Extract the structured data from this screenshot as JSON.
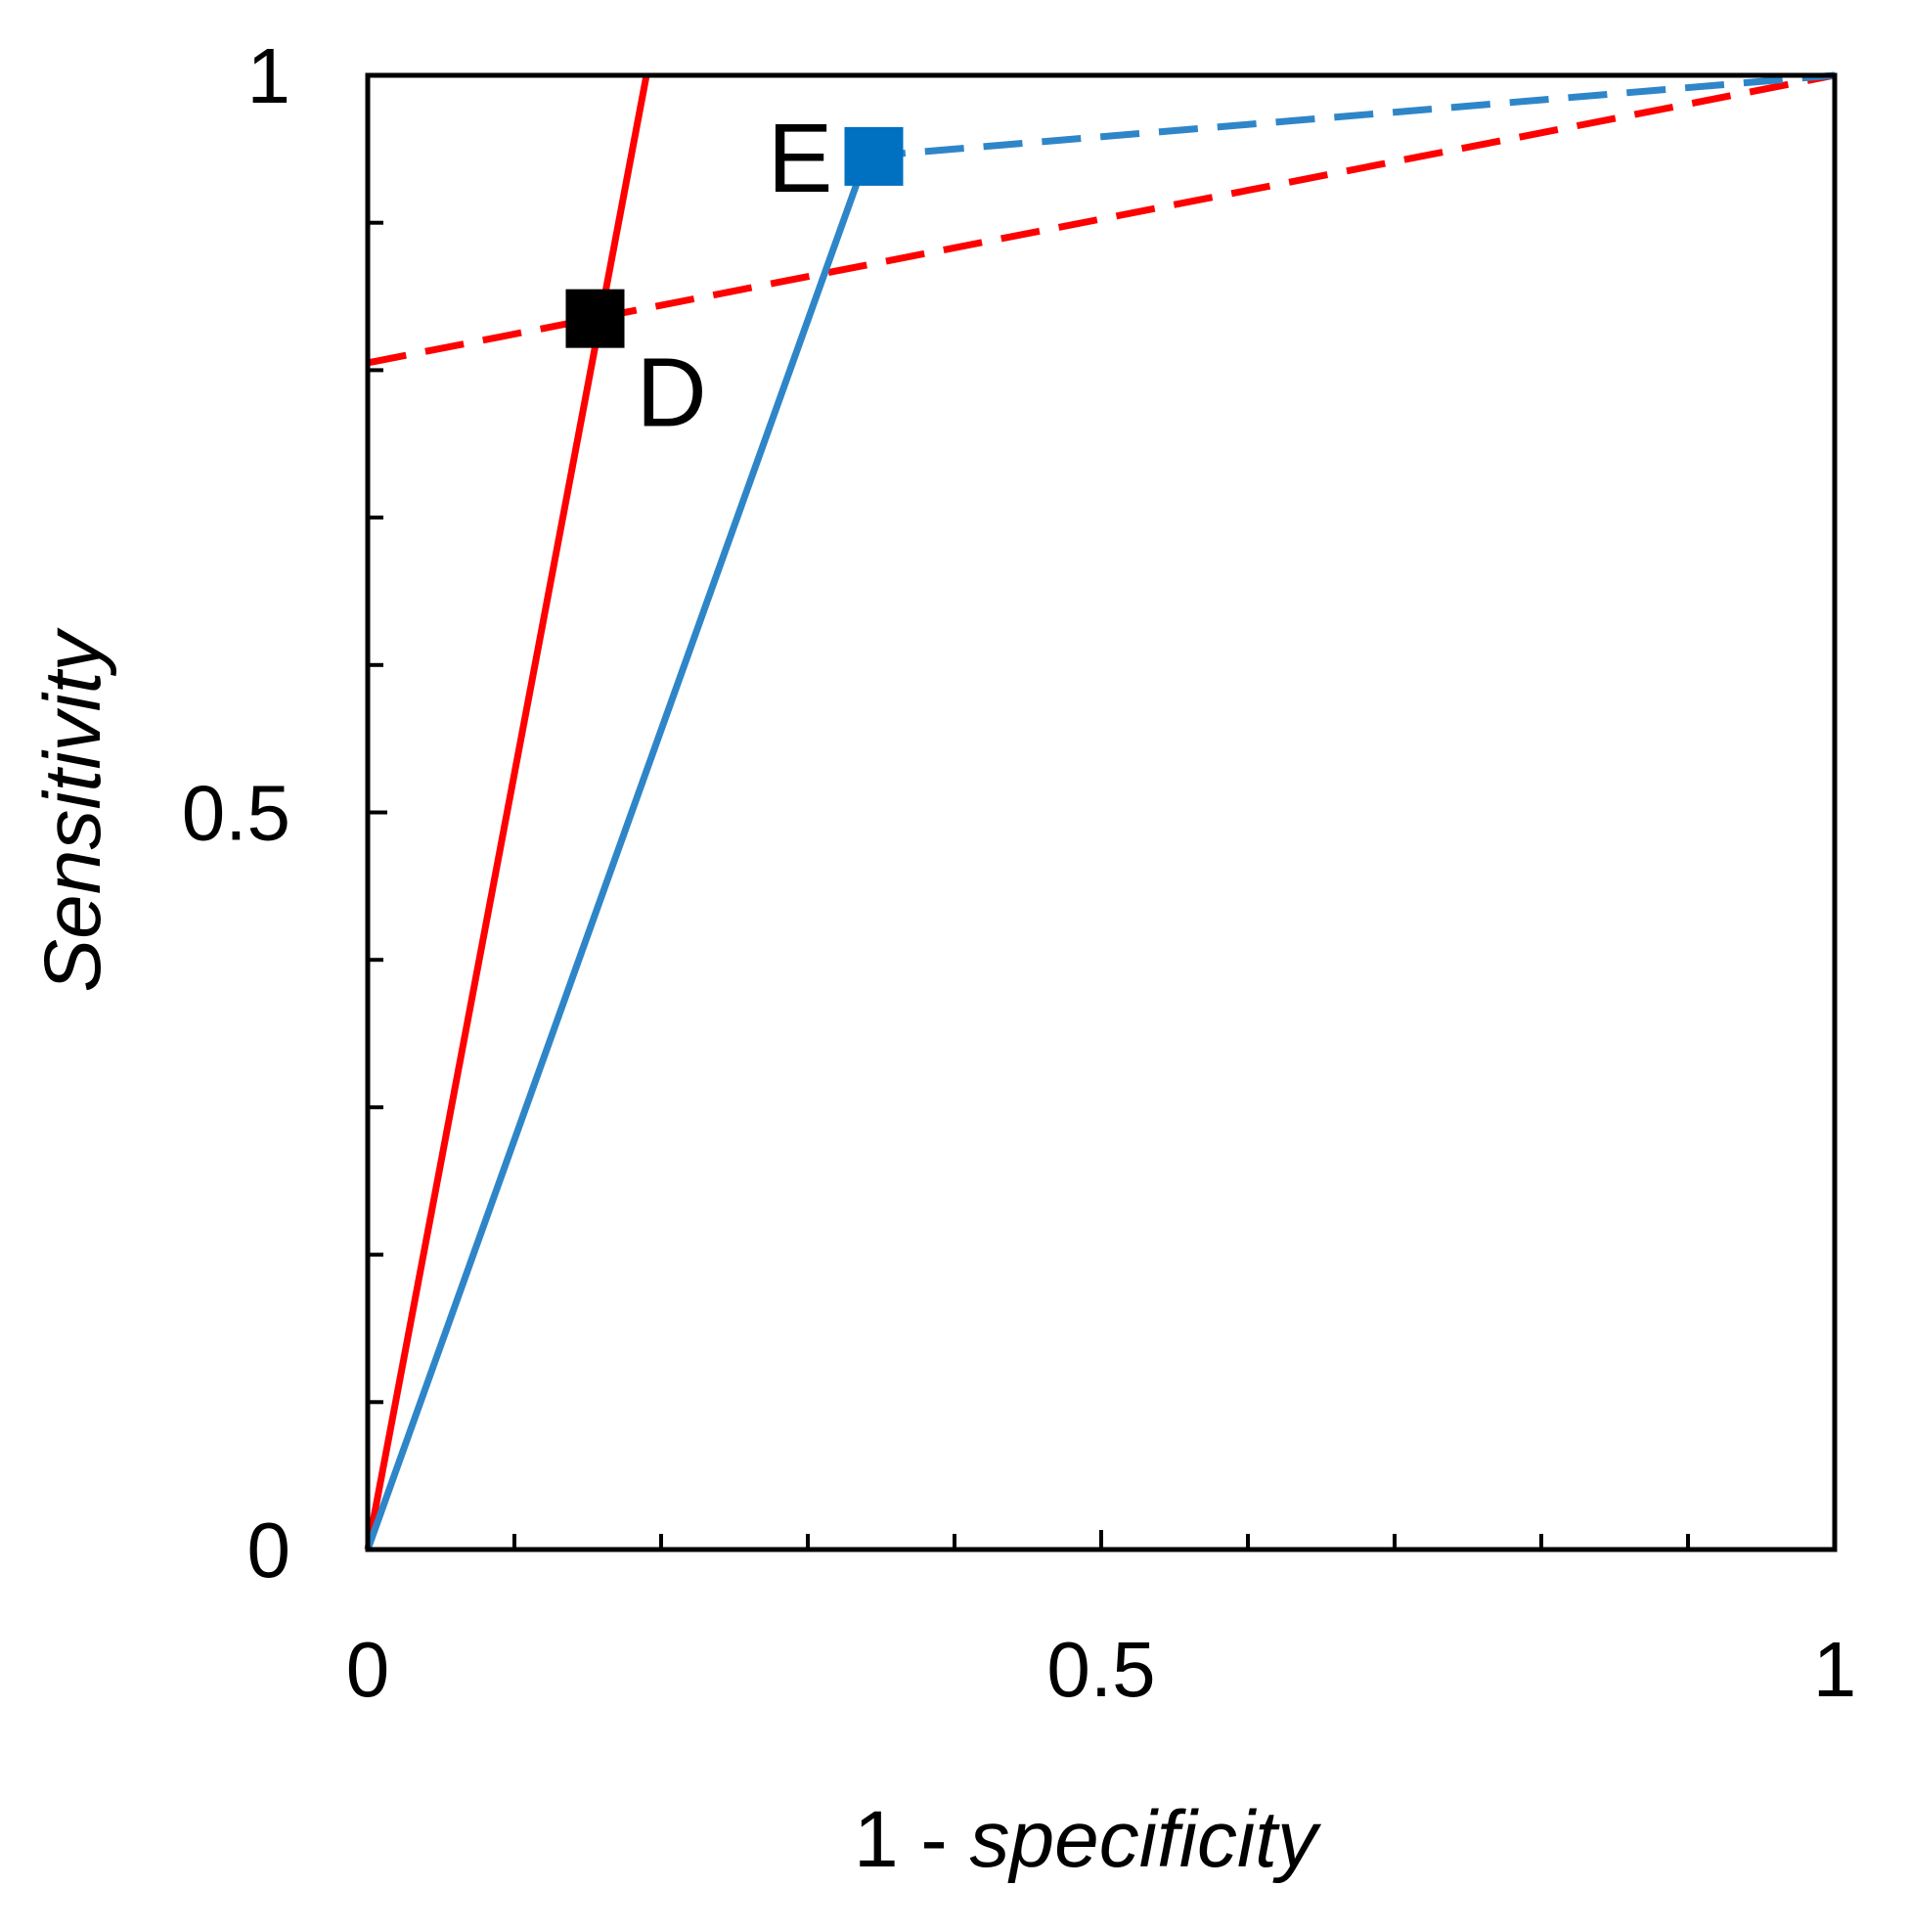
{
  "chart_data": {
    "type": "line",
    "xlabel": {
      "prefix": "1 - ",
      "italic": "specificity"
    },
    "ylabel": "Sensitivity",
    "xlim": [
      0,
      1
    ],
    "ylim": [
      0,
      1
    ],
    "x_major_ticks": [
      {
        "value": 0,
        "label": "0"
      },
      {
        "value": 0.5,
        "label": "0.5"
      },
      {
        "value": 1,
        "label": "1"
      }
    ],
    "y_major_ticks": [
      {
        "value": 0,
        "label": "0"
      },
      {
        "value": 0.5,
        "label": "0.5"
      },
      {
        "value": 1,
        "label": "1"
      }
    ],
    "x_minor_step": 0.1,
    "y_minor_step": 0.1,
    "grid": false,
    "series": [
      {
        "name": "red-solid",
        "color": "#ff0000",
        "dash": false,
        "x": [
          0,
          0.19
        ],
        "y": [
          0,
          1
        ]
      },
      {
        "name": "red-dashed",
        "color": "#ff0000",
        "dash": true,
        "x": [
          0,
          1
        ],
        "y": [
          0.805,
          1
        ]
      },
      {
        "name": "blue-solid",
        "color": "#2e86c8",
        "dash": false,
        "x": [
          0,
          0.34
        ],
        "y": [
          0,
          0.945
        ]
      },
      {
        "name": "blue-dashed",
        "color": "#2e86c8",
        "dash": true,
        "x": [
          0.34,
          1
        ],
        "y": [
          0.945,
          1
        ]
      }
    ],
    "points": [
      {
        "label": "D",
        "x": 0.155,
        "y": 0.835,
        "color": "#000000",
        "label_pos": "bottom-right"
      },
      {
        "label": "E",
        "x": 0.345,
        "y": 0.945,
        "color": "#0070c0",
        "label_pos": "left"
      }
    ]
  }
}
